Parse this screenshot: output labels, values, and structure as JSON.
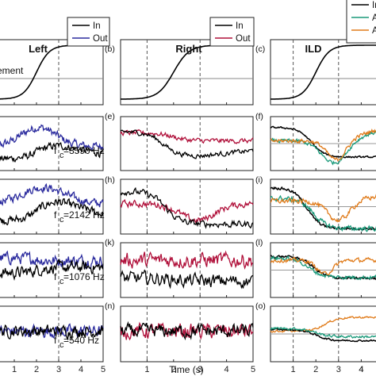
{
  "chart_data": {
    "type": "line",
    "xlabel": "Time (s)",
    "xlim": [
      0,
      5
    ],
    "xticks": [
      1,
      2,
      3,
      4,
      5
    ],
    "vlines": [
      1,
      3
    ],
    "columns": [
      {
        "title": "Left",
        "legend": [
          "In",
          "Out"
        ]
      },
      {
        "title": "Right",
        "legend": [
          "In",
          "Out"
        ]
      },
      {
        "title": "ILD",
        "legend": [
          "In",
          "AD",
          "AC"
        ]
      }
    ],
    "movement_label": "ement",
    "panel_labels": [
      "(b)",
      "(c)",
      "(e)",
      "(f)",
      "(h)",
      "(i)",
      "(k)",
      "(l)",
      "(n)",
      "(o)"
    ],
    "freq_labels": [
      "f",
      "c",
      "=3590 Hz",
      "=2142 Hz",
      "=1076 Hz",
      "=540 Hz"
    ],
    "series_colors": {
      "In": "#000000",
      "Out_left": "#2b2b9e",
      "Out_right": "#b0103a",
      "AD": "#1a9a7a",
      "AC": "#e07b1a"
    }
  }
}
